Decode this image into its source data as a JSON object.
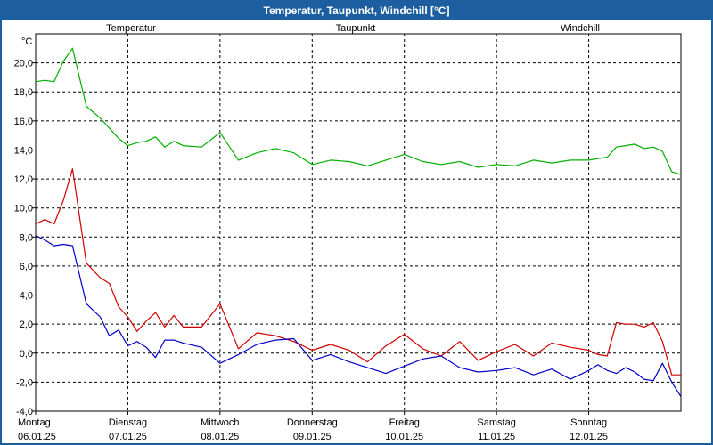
{
  "chart_data": {
    "type": "line",
    "title": "Temperatur, Taupunkt, Windchill [°C]",
    "ylabel": "°C",
    "xlabel": "",
    "ylim": [
      -4.0,
      22.0
    ],
    "y_ticks": [
      "20,0",
      "18,0",
      "16,0",
      "14,0",
      "12,0",
      "10,0",
      "8,0",
      "6,0",
      "4,0",
      "2,0",
      "0,0",
      "-2,0",
      "-4,0"
    ],
    "y_tick_values": [
      20,
      18,
      16,
      14,
      12,
      10,
      8,
      6,
      4,
      2,
      0,
      -2,
      -4
    ],
    "x_range": [
      0,
      7
    ],
    "x_ticks": [
      {
        "day": "Montag",
        "date": "06.01.25"
      },
      {
        "day": "Dienstag",
        "date": "07.01.25"
      },
      {
        "day": "Mittwoch",
        "date": "08.01.25"
      },
      {
        "day": "Donnerstag",
        "date": "09.01.25"
      },
      {
        "day": "Freitag",
        "date": "10.01.25"
      },
      {
        "day": "Samstag",
        "date": "11.01.25"
      },
      {
        "day": "Sonntag",
        "date": "12.01.25"
      }
    ],
    "grid": true,
    "legend": [
      "Temperatur",
      "Taupunkt",
      "Windchill"
    ],
    "series": [
      {
        "name": "Temperatur",
        "color": "#d00000",
        "x": [
          0,
          0.1,
          0.2,
          0.3,
          0.4,
          0.55,
          0.7,
          0.8,
          0.9,
          1.0,
          1.1,
          1.2,
          1.3,
          1.4,
          1.5,
          1.6,
          1.8,
          2.0,
          2.2,
          2.4,
          2.6,
          2.8,
          3.0,
          3.2,
          3.4,
          3.6,
          3.8,
          4.0,
          4.2,
          4.4,
          4.6,
          4.8,
          5.0,
          5.2,
          5.4,
          5.6,
          5.8,
          6.0,
          6.1,
          6.2,
          6.3,
          6.4,
          6.5,
          6.6,
          6.7,
          6.8,
          6.9,
          7.0
        ],
        "values": [
          8.9,
          9.2,
          8.9,
          10.5,
          12.7,
          6.2,
          5.2,
          4.8,
          3.2,
          2.5,
          1.5,
          2.2,
          2.8,
          1.8,
          2.6,
          1.8,
          1.8,
          3.4,
          0.3,
          1.4,
          1.2,
          0.8,
          0.2,
          0.6,
          0.2,
          -0.6,
          0.5,
          1.3,
          0.3,
          -0.2,
          0.8,
          -0.5,
          0.1,
          0.6,
          -0.2,
          0.7,
          0.4,
          0.2,
          -0.1,
          -0.2,
          2.1,
          2.0,
          2.0,
          1.8,
          2.1,
          0.8,
          -1.5,
          -1.5
        ]
      },
      {
        "name": "Taupunkt",
        "color": "#0000c8",
        "x": [
          0,
          0.1,
          0.2,
          0.3,
          0.4,
          0.55,
          0.7,
          0.8,
          0.9,
          1.0,
          1.1,
          1.2,
          1.3,
          1.4,
          1.5,
          1.6,
          1.8,
          2.0,
          2.2,
          2.4,
          2.6,
          2.8,
          3.0,
          3.2,
          3.4,
          3.6,
          3.8,
          4.0,
          4.2,
          4.4,
          4.6,
          4.8,
          5.0,
          5.2,
          5.4,
          5.6,
          5.8,
          6.0,
          6.1,
          6.2,
          6.3,
          6.4,
          6.5,
          6.6,
          6.7,
          6.8,
          6.9,
          7.0
        ],
        "values": [
          8.1,
          7.8,
          7.4,
          7.5,
          7.4,
          3.4,
          2.5,
          1.2,
          1.6,
          0.5,
          0.8,
          0.4,
          -0.3,
          0.9,
          0.9,
          0.7,
          0.4,
          -0.7,
          -0.1,
          0.6,
          0.9,
          1.0,
          -0.5,
          -0.1,
          -0.6,
          -1.0,
          -1.4,
          -0.9,
          -0.4,
          -0.2,
          -1.0,
          -1.3,
          -1.2,
          -1.0,
          -1.5,
          -1.1,
          -1.8,
          -1.2,
          -0.8,
          -1.2,
          -1.4,
          -1.0,
          -1.3,
          -1.8,
          -1.9,
          -0.7,
          -2.0,
          -3.0
        ]
      },
      {
        "name": "Windchill",
        "color": "#00b000",
        "x": [
          0,
          0.1,
          0.2,
          0.3,
          0.4,
          0.55,
          0.7,
          0.8,
          0.9,
          1.0,
          1.1,
          1.2,
          1.3,
          1.4,
          1.5,
          1.6,
          1.8,
          2.0,
          2.2,
          2.4,
          2.6,
          2.8,
          3.0,
          3.2,
          3.4,
          3.6,
          3.8,
          4.0,
          4.2,
          4.4,
          4.6,
          4.8,
          5.0,
          5.2,
          5.4,
          5.6,
          5.8,
          6.0,
          6.1,
          6.2,
          6.3,
          6.4,
          6.5,
          6.6,
          6.7,
          6.8,
          6.9,
          7.0
        ],
        "values": [
          18.7,
          18.8,
          18.7,
          20.1,
          21.0,
          17.0,
          16.2,
          15.5,
          14.8,
          14.3,
          14.5,
          14.6,
          14.9,
          14.2,
          14.6,
          14.3,
          14.2,
          15.2,
          13.3,
          13.8,
          14.1,
          13.8,
          13.0,
          13.3,
          13.2,
          12.9,
          13.3,
          13.7,
          13.2,
          13.0,
          13.2,
          12.8,
          13.0,
          12.9,
          13.3,
          13.1,
          13.3,
          13.3,
          13.4,
          13.5,
          14.2,
          14.3,
          14.4,
          14.1,
          14.2,
          13.9,
          12.5,
          12.3
        ]
      }
    ]
  }
}
